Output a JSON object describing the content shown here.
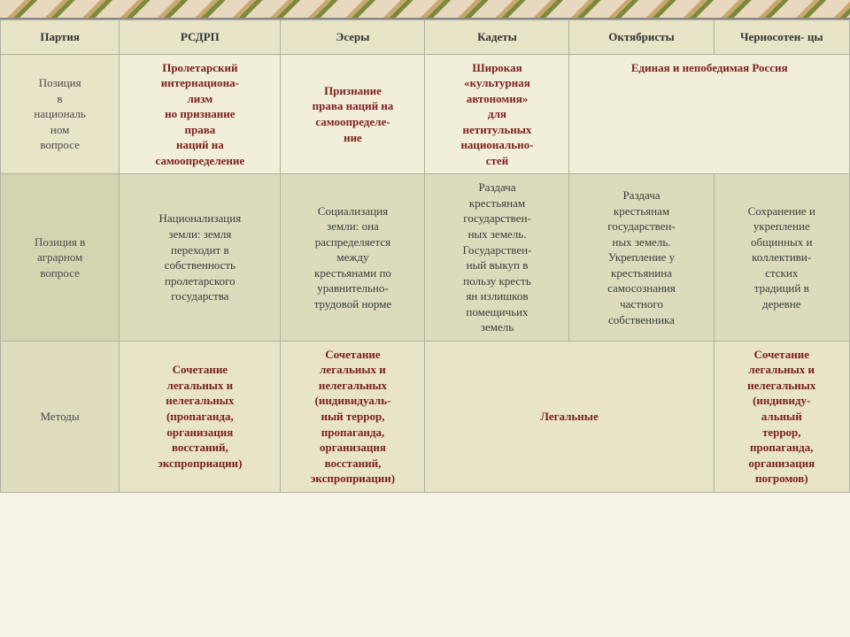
{
  "headers": [
    "Партия",
    "РСДРП",
    "Эсеры",
    "Кадеты",
    "Октябристы",
    "Черносотен-\nцы"
  ],
  "rows": [
    {
      "label": "Позиция\nв\nнациональ\nном\nвопросе",
      "cells": [
        {
          "text": "Пролетарский\nинтернациона-\nлизм\nно признание\nправа\nнаций на\nсамоопределение",
          "class": "maroon"
        },
        {
          "text": "Признание\nправа наций на\nсамоопределе-\nние",
          "class": "maroon"
        },
        {
          "text": "Широкая\n«культурная\nавтономия»\nдля\nнетитульных\nнационально-\nстей",
          "class": "maroon"
        },
        {
          "text": "Единая и непобедимая Россия",
          "class": "maroon",
          "colspan": 2
        }
      ]
    },
    {
      "label": "Позиция в\nаграрном\nвопросе",
      "cells": [
        {
          "text": "Национализация\nземли: земля\nпереходит в\nсобственность\nпролетарского\nгосударства",
          "class": "dark"
        },
        {
          "text": "Социализация\nземли: она\nраспределяется\nмежду\nкрестьянами по\nуравнительно-\nтрудовой норме",
          "class": "dark"
        },
        {
          "text": "Раздача\nкрестьянам\nгосударствен-\nных земель.\nГосударствен-\nный выкуп в\nпользу кресть\nян излишков\nпомещичьих\nземель",
          "class": "dark"
        },
        {
          "text": "Раздача\nкрестьянам\nгосударствен-\nных земель.\nУкрепление у\nкрестьянина\nсамосознания\nчастного\nсобственника",
          "class": "dark"
        },
        {
          "text": "Сохранение и\nукрепление\nобщинных и\nколлективи-\nстских\nтрадиций в\nдеревне",
          "class": "dark"
        }
      ]
    },
    {
      "label": "Методы",
      "cells": [
        {
          "text": "Сочетание\nлегальных и\nнелегальных\n(пропаганда,\nорганизация\nвосстаний,\nэкспроприации)",
          "class": "maroon"
        },
        {
          "text": "Сочетание\nлегальных и\nнелегальных\n(индивидуаль-\nный террор,\nпропаганда,\nорганизация\nвосстаний,\nэкспроприации)",
          "class": "maroon"
        },
        {
          "text": "Легальные",
          "class": "maroon",
          "colspan": 2
        },
        {
          "text": "Сочетание\nлегальных и\nнелегальных\n(индивиду-\nальный\nтеррор,\nпропаганда,\nорганизация\nпогромов)",
          "class": "maroon"
        }
      ]
    }
  ]
}
